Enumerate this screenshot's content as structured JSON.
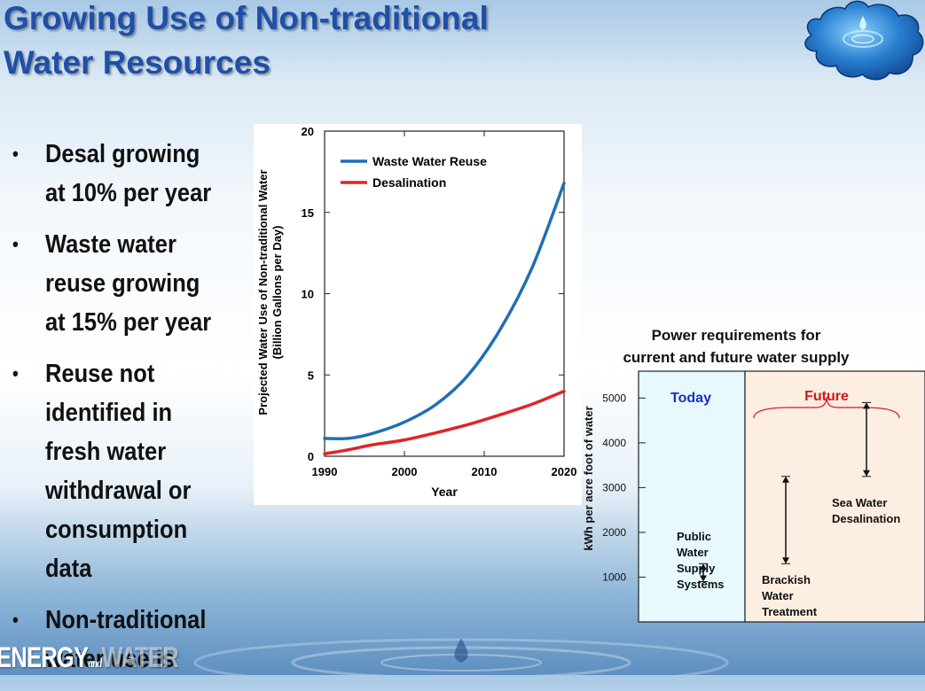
{
  "slide": {
    "title_line1": "Growing Use of Non-traditional",
    "title_line2": "Water Resources",
    "bullet_char": "•",
    "bullets": [
      "Desal growing at 10% per year",
      "Waste water reuse growing at 15% per year",
      "Reuse not identified in fresh water withdrawal or consumption data",
      "Non-traditional water use is"
    ],
    "brand": {
      "word1": "ENERGY",
      "word2": "and",
      "word3": "WATER"
    },
    "colors": {
      "title": "#1f4fa8",
      "waste_water": "#1f6fb5",
      "desalination": "#e02428",
      "today_bg": "#e7f9fd",
      "future_bg": "#fdeee2"
    },
    "icons": [
      "puzzle-piece-water-icon",
      "water-drop-ripple-icon"
    ]
  },
  "chart_data": [
    {
      "type": "line",
      "title": "",
      "xlabel": "Year",
      "ylabel_line1": "Projected Water Use of Non-traditional Water",
      "ylabel_line2": "(Billion Gallons per Day)",
      "xlim": [
        1990,
        2020
      ],
      "ylim": [
        0,
        20
      ],
      "x_ticks": [
        1990,
        2000,
        2010,
        2020
      ],
      "y_ticks": [
        0,
        5,
        10,
        15,
        20
      ],
      "legend_position": "top-left",
      "x": [
        1990,
        1993,
        1996,
        2000,
        2004,
        2008,
        2012,
        2016,
        2020
      ],
      "series": [
        {
          "name": "Waste Water Reuse",
          "color": "#1f6fb5",
          "values": [
            1.1,
            1.1,
            1.4,
            2.1,
            3.2,
            5.0,
            7.8,
            11.6,
            16.8
          ]
        },
        {
          "name": "Desalination",
          "color": "#e02428",
          "values": [
            0.15,
            0.4,
            0.7,
            1.0,
            1.45,
            1.95,
            2.55,
            3.2,
            4.0
          ]
        }
      ]
    },
    {
      "type": "range",
      "title_line1": "Power requirements for",
      "title_line2": "current and future water supply",
      "ylabel": "kWh per acre foot of water",
      "y_ticks": [
        1000,
        2000,
        3000,
        4000,
        5000
      ],
      "ylim": [
        0,
        5600
      ],
      "panels": [
        "Today",
        "Future"
      ],
      "categories": [
        {
          "label_lines": [
            "Public",
            "Water",
            "Supply",
            "Systems"
          ],
          "panel": "Today",
          "min": 900,
          "max": 1300
        },
        {
          "label_lines": [
            "Brackish",
            "Water",
            "Treatment"
          ],
          "panel": "Future",
          "min": 1300,
          "max": 3250
        },
        {
          "label_lines": [
            "Sea Water",
            "Desalination"
          ],
          "panel": "Future",
          "min": 3250,
          "max": 4900
        }
      ]
    }
  ]
}
